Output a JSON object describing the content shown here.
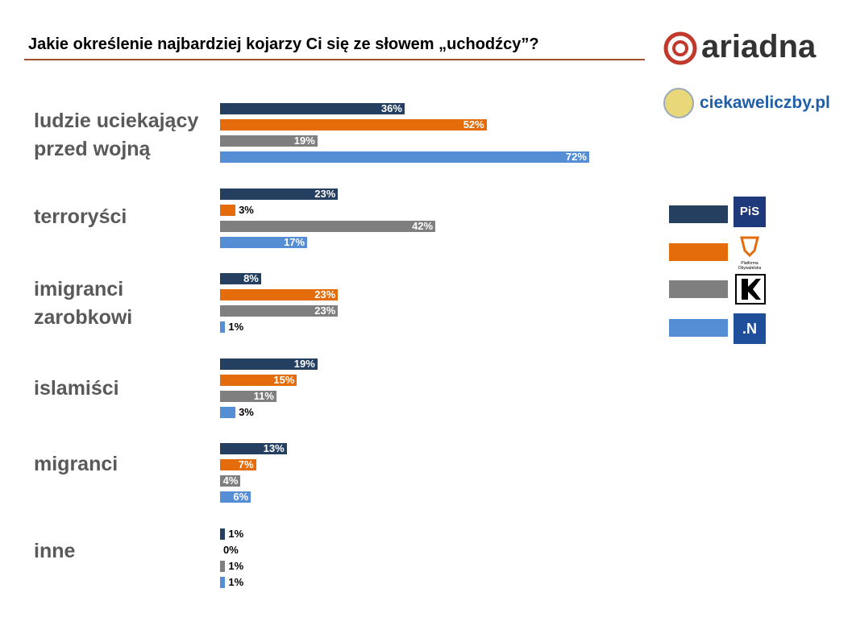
{
  "chart_data": {
    "type": "bar",
    "orientation": "horizontal",
    "title": "Jakie określenie najbardziej kojarzy Ci się ze słowem „uchodźcy”?",
    "categories": [
      "ludzie uciekający\nprzed wojną",
      "terroryści",
      "imigranci\nzarobkowi",
      "islamiści",
      "migranci",
      "inne"
    ],
    "series": [
      {
        "name": "PiS",
        "color": "#243f60",
        "values": [
          36,
          23,
          8,
          19,
          13,
          1
        ],
        "value_labels": [
          "36%",
          "23%",
          "8%",
          "19%",
          "13%",
          "1%"
        ]
      },
      {
        "name": "Platforma Obywatelska",
        "color": "#e46c0a",
        "values": [
          52,
          3,
          23,
          15,
          7,
          0
        ],
        "value_labels": [
          "52%",
          "3%",
          "23%",
          "15%",
          "7%",
          "0%"
        ]
      },
      {
        "color": "#7f7f7f",
        "values": [
          19,
          42,
          23,
          11,
          4,
          1
        ],
        "value_labels": [
          "19%",
          "42%",
          "23%",
          "11%",
          "4%",
          "1%"
        ]
      },
      {
        "name": ".N",
        "color": "#558ed5",
        "values": [
          72,
          17,
          1,
          3,
          6,
          1
        ],
        "value_labels": [
          "72%",
          "17%",
          "1%",
          "3%",
          "6%",
          "1%"
        ]
      }
    ]
  },
  "branding": [
    "ariadna",
    "ciekaweliczby.pl"
  ]
}
